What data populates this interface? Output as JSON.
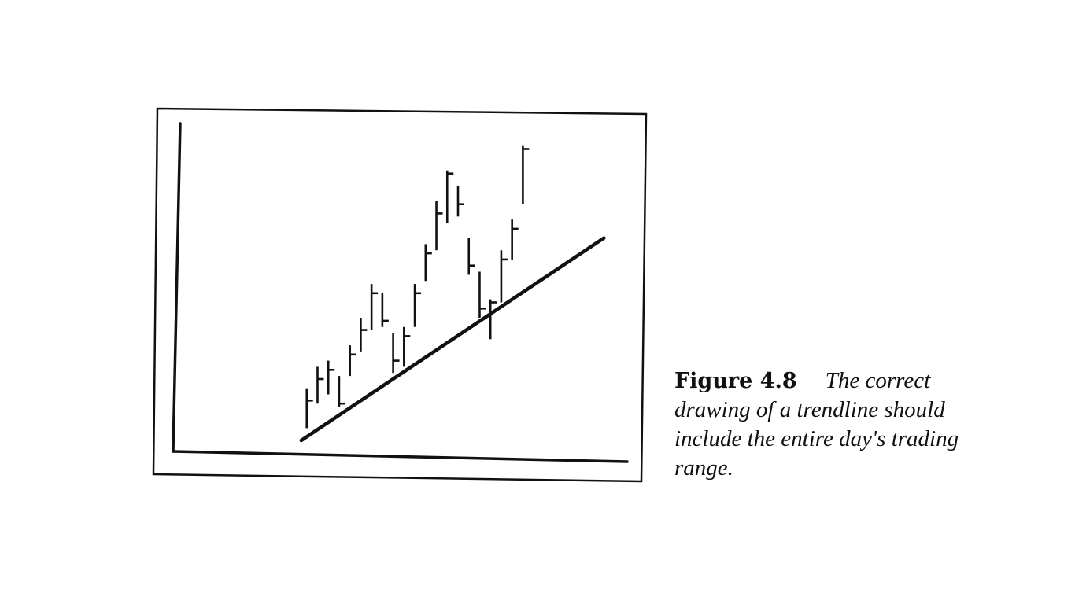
{
  "caption": {
    "label": "Figure 4.8",
    "text": "The correct drawing of a trendline should include the entire day's trading range."
  },
  "colors": {
    "ink": "#111111",
    "background": "#ffffff"
  },
  "chart_data": {
    "type": "bar",
    "subtype": "ohlc-price-bars",
    "title": "",
    "xlabel": "",
    "ylabel": "",
    "axis_ticks": false,
    "grid": false,
    "legend": "none",
    "xlim": [
      0,
      30
    ],
    "ylim": [
      0,
      100
    ],
    "bars": [
      {
        "x": 1,
        "high": 17,
        "low": 4,
        "open": 5,
        "close": 13
      },
      {
        "x": 2,
        "high": 24,
        "low": 12,
        "open": 14,
        "close": 20
      },
      {
        "x": 3,
        "high": 26,
        "low": 15,
        "open": 17,
        "close": 23
      },
      {
        "x": 4,
        "high": 21,
        "low": 11,
        "open": 19,
        "close": 12
      },
      {
        "x": 5,
        "high": 31,
        "low": 21,
        "open": 22,
        "close": 28
      },
      {
        "x": 6,
        "high": 40,
        "low": 29,
        "open": 30,
        "close": 36
      },
      {
        "x": 7,
        "high": 51,
        "low": 36,
        "open": 38,
        "close": 48
      },
      {
        "x": 8,
        "high": 48,
        "low": 37,
        "open": 46,
        "close": 39
      },
      {
        "x": 9,
        "high": 35,
        "low": 22,
        "open": 32,
        "close": 26
      },
      {
        "x": 10,
        "high": 37,
        "low": 24,
        "open": 26,
        "close": 34
      },
      {
        "x": 11,
        "high": 51,
        "low": 37,
        "open": 38,
        "close": 48
      },
      {
        "x": 12,
        "high": 64,
        "low": 52,
        "open": 53,
        "close": 61
      },
      {
        "x": 13,
        "high": 78,
        "low": 62,
        "open": 63,
        "close": 74
      },
      {
        "x": 14,
        "high": 88,
        "low": 71,
        "open": 72,
        "close": 87
      },
      {
        "x": 15,
        "high": 83,
        "low": 73,
        "open": 82,
        "close": 77
      },
      {
        "x": 16,
        "high": 66,
        "low": 54,
        "open": 63,
        "close": 57
      },
      {
        "x": 17,
        "high": 55,
        "low": 40,
        "open": 52,
        "close": 43
      },
      {
        "x": 18,
        "high": 46,
        "low": 33,
        "open": 35,
        "close": 45
      },
      {
        "x": 19,
        "high": 62,
        "low": 45,
        "open": 47,
        "close": 59
      },
      {
        "x": 20,
        "high": 72,
        "low": 59,
        "open": 61,
        "close": 69
      },
      {
        "x": 21,
        "high": 96,
        "low": 77,
        "open": 78,
        "close": 95
      }
    ],
    "trendline": {
      "x1": 0.5,
      "y1": 0,
      "x2": 28.5,
      "y2": 66
    }
  }
}
